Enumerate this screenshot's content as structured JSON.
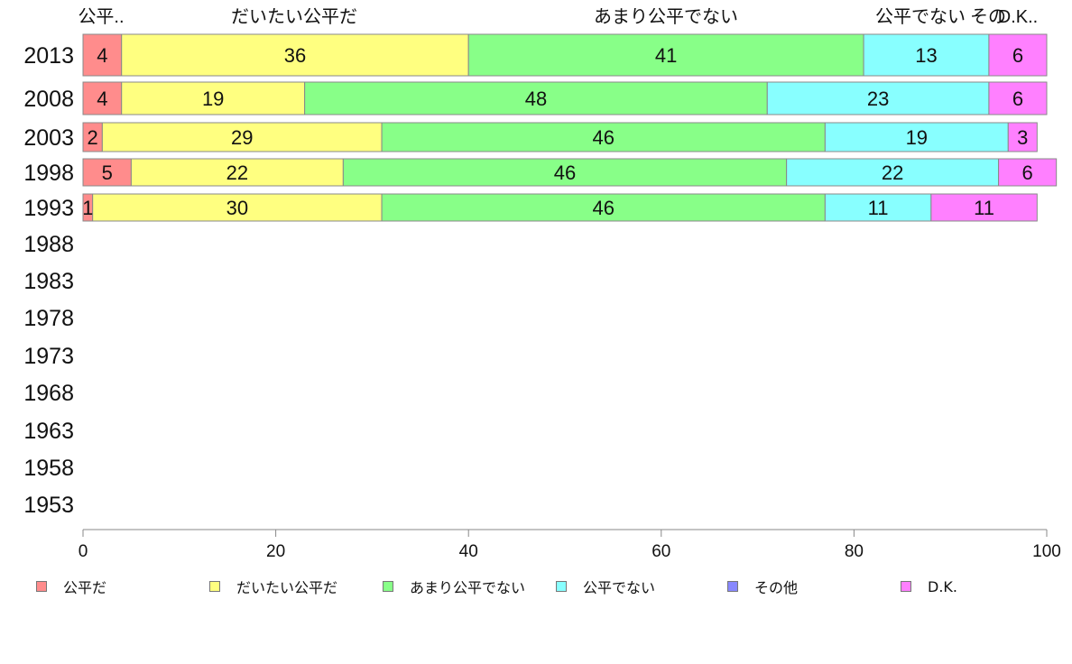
{
  "chart_data": {
    "type": "bar",
    "orientation": "horizontal",
    "stacked": true,
    "categories": [
      "2013",
      "2008",
      "2003",
      "1998",
      "1993",
      "1988",
      "1983",
      "1978",
      "1973",
      "1968",
      "1963",
      "1958",
      "1953"
    ],
    "series": [
      {
        "name": "公平だ",
        "color": "#ff8c8c",
        "values": [
          4,
          4,
          2,
          5,
          1,
          null,
          null,
          null,
          null,
          null,
          null,
          null,
          null
        ]
      },
      {
        "name": "だいたい公平だ",
        "color": "#ffff80",
        "values": [
          36,
          19,
          29,
          22,
          30,
          null,
          null,
          null,
          null,
          null,
          null,
          null,
          null
        ]
      },
      {
        "name": "あまり公平でない",
        "color": "#88ff88",
        "values": [
          41,
          48,
          46,
          46,
          46,
          null,
          null,
          null,
          null,
          null,
          null,
          null,
          null
        ]
      },
      {
        "name": "公平でない",
        "color": "#88ffff",
        "values": [
          13,
          23,
          19,
          22,
          11,
          null,
          null,
          null,
          null,
          null,
          null,
          null,
          null
        ]
      },
      {
        "name": "その他",
        "color": "#8888ff",
        "values": [
          0,
          0,
          0,
          0,
          0,
          null,
          null,
          null,
          null,
          null,
          null,
          null,
          null
        ]
      },
      {
        "name": "D.K.",
        "color": "#ff80ff",
        "values": [
          6,
          6,
          3,
          6,
          11,
          null,
          null,
          null,
          null,
          null,
          null,
          null,
          null
        ]
      }
    ],
    "top_labels": [
      "公平..",
      "だいたい公平だ",
      "あまり公平でない",
      "公平でない",
      "その",
      "D.K.."
    ],
    "xlim": [
      0,
      100
    ],
    "xticks": [
      0,
      20,
      40,
      60,
      80,
      100
    ],
    "grid": false,
    "legend_position": "bottom"
  }
}
